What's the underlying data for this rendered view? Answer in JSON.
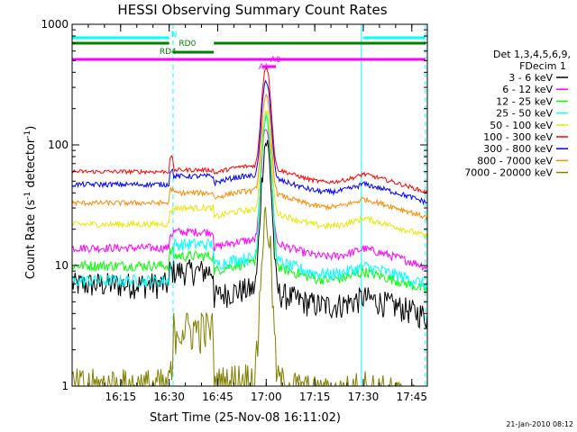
{
  "chart_data": {
    "type": "line",
    "title": "HESSI Observing Summary Count Rates",
    "xlabel": "Start Time (25-Nov-08 16:11:02)",
    "ylabel_main": "Count Rate (s",
    "ylabel_sup1": "-1",
    "ylabel_mid": " detector",
    "ylabel_sup2": "-1",
    "ylabel_end": ")",
    "y_scale": "log",
    "ylim": [
      1,
      1000
    ],
    "xlim_minutes": [
      16.0,
      17.83
    ],
    "x_ticks": [
      {
        "label": "16:15",
        "t": 16.25
      },
      {
        "label": "16:30",
        "t": 16.5
      },
      {
        "label": "16:45",
        "t": 16.75
      },
      {
        "label": "17:00",
        "t": 17.0
      },
      {
        "label": "17:15",
        "t": 17.25
      },
      {
        "label": "17:30",
        "t": 17.5
      },
      {
        "label": "17:45",
        "t": 17.75
      }
    ],
    "y_ticks": [
      {
        "label": "1",
        "v": 1
      },
      {
        "label": "10",
        "v": 10
      },
      {
        "label": "100",
        "v": 100
      },
      {
        "label": "1000",
        "v": 1000
      }
    ],
    "legend_header": [
      "Det 1,3,4,5,6,9,",
      "FDecim 1"
    ],
    "legend_position": "right",
    "series": [
      {
        "name": "3 - 6 keV",
        "color": "#000000",
        "pre": 7,
        "mid": 9,
        "post": 5.5,
        "peak": 100,
        "noise": 0.25
      },
      {
        "name": "6 - 12 keV",
        "color": "#ff00ff",
        "pre": 14,
        "mid": 19,
        "post": 14,
        "peak": 125,
        "noise": 0.08
      },
      {
        "name": "12 - 25 keV",
        "color": "#00ff00",
        "pre": 10,
        "mid": 12,
        "post": 9,
        "peak": 150,
        "noise": 0.1
      },
      {
        "name": "25 - 50 keV",
        "color": "#00ffff",
        "pre": 7.5,
        "mid": 15,
        "post": 10,
        "peak": 170,
        "noise": 0.12
      },
      {
        "name": "50 - 100 keV",
        "color": "#e8e800",
        "pre": 22,
        "mid": 30,
        "post": 25,
        "peak": 165,
        "noise": 0.06
      },
      {
        "name": "100 - 300 keV",
        "color": "#ff0000",
        "pre": 60,
        "mid": 62,
        "post": 58,
        "peak": 380,
        "noise": 0.04
      },
      {
        "name": "300 - 800 keV",
        "color": "#0000ff",
        "pre": 47,
        "mid": 55,
        "post": 48,
        "peak": 290,
        "noise": 0.05
      },
      {
        "name": "800 - 7000 keV",
        "color": "#ff8800",
        "pre": 33,
        "mid": 40,
        "post": 36,
        "peak": 210,
        "noise": 0.05
      },
      {
        "name": "7000 - 20000 keV",
        "color": "#808000",
        "pre": 1.0,
        "mid": 3.0,
        "post": 1.0,
        "peak": 24,
        "noise": 0.4
      }
    ],
    "flags": [
      {
        "label": "N",
        "color": "#00ffff"
      },
      {
        "label": "RD0",
        "color": "#008000"
      },
      {
        "label": "RD4",
        "color": "#008000"
      },
      {
        "label": "A0",
        "color": "#ff00ff"
      },
      {
        "label": "A1",
        "color": "#ff00ff"
      }
    ],
    "grid": false
  },
  "timestamp": "21-Jan-2010 08:12"
}
